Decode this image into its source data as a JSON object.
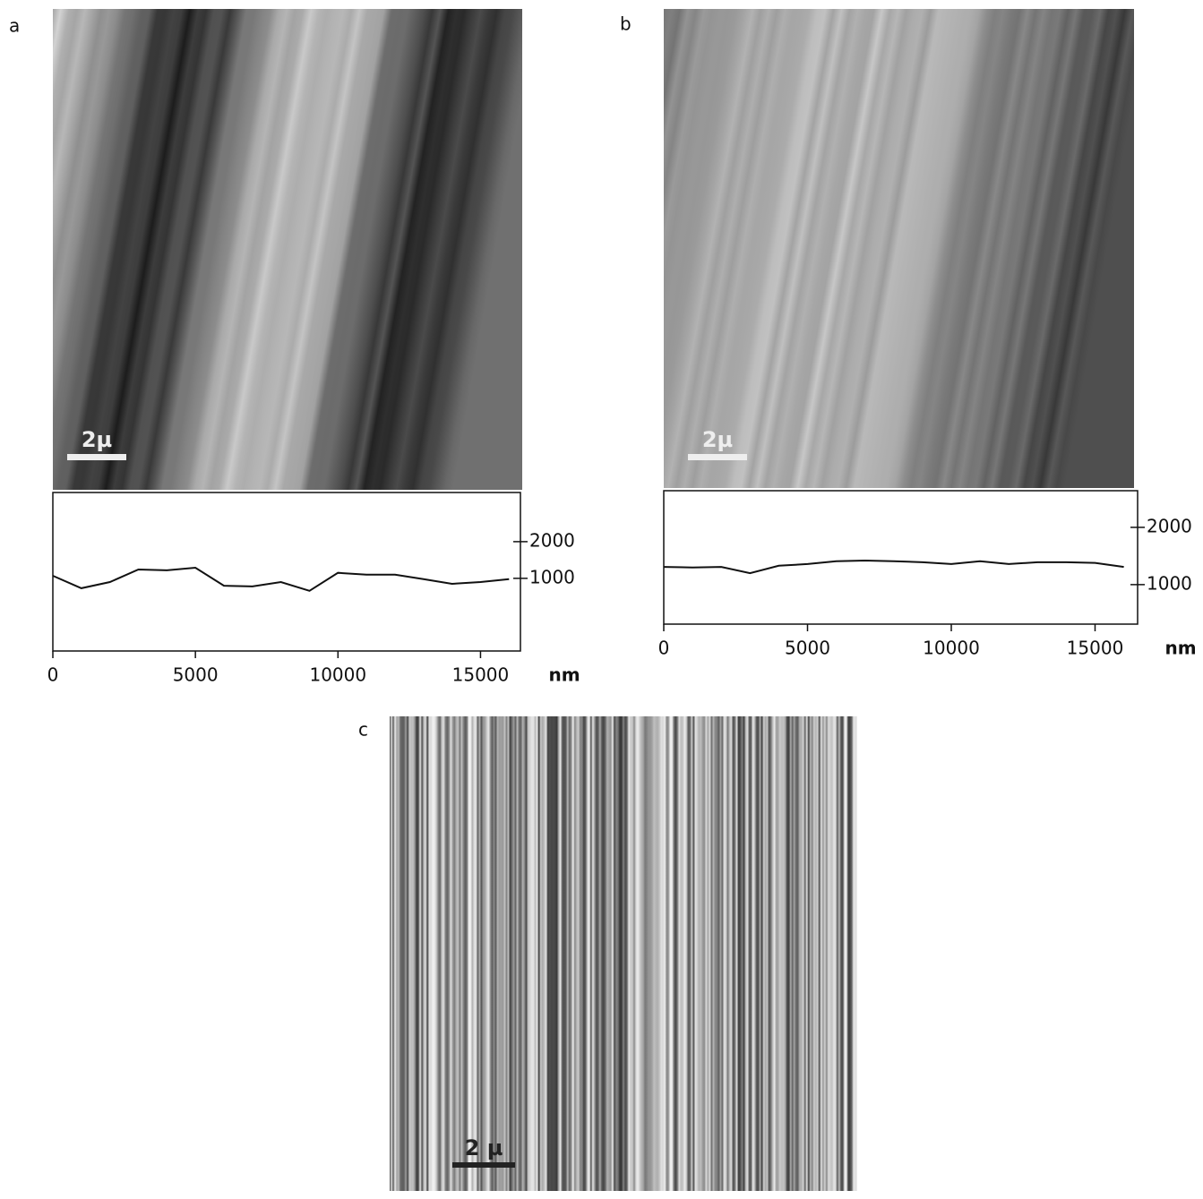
{
  "panels": [
    {
      "label": "a",
      "scale_bar": "2µ"
    },
    {
      "label": "b",
      "scale_bar": "2µ"
    },
    {
      "label": "c",
      "scale_bar": "2 µ"
    }
  ],
  "chart_data": [
    {
      "type": "line",
      "x_label": "nm",
      "x": [
        0,
        1000,
        2000,
        3000,
        4000,
        5000,
        6000,
        7000,
        8000,
        9000,
        10000,
        11000,
        12000,
        13000,
        14000,
        15000,
        16000
      ],
      "series": [
        {
          "color": "#111111",
          "values": [
            1070,
            730,
            900,
            1240,
            1220,
            1290,
            800,
            780,
            900,
            660,
            1150,
            1100,
            1100,
            980,
            850,
            900,
            980
          ]
        }
      ],
      "xlim": [
        0,
        16400
      ],
      "xticks": [
        0,
        5000,
        10000,
        15000
      ],
      "ylim": [
        -980,
        3340
      ],
      "yticks": [
        1000,
        2000
      ]
    },
    {
      "type": "line",
      "x_label": "nm",
      "x": [
        0,
        1000,
        2000,
        3000,
        4000,
        5000,
        6000,
        7000,
        8000,
        9000,
        10000,
        11000,
        12000,
        13000,
        14000,
        15000,
        16000
      ],
      "series": [
        {
          "color": "#111111",
          "values": [
            1310,
            1300,
            1310,
            1200,
            1330,
            1360,
            1410,
            1420,
            1410,
            1390,
            1360,
            1410,
            1360,
            1390,
            1390,
            1380,
            1310
          ]
        }
      ],
      "xlim": [
        0,
        16480
      ],
      "xticks": [
        0,
        5000,
        10000,
        15000
      ],
      "ylim": [
        310,
        2640
      ],
      "yticks": [
        1000,
        2000
      ]
    }
  ]
}
